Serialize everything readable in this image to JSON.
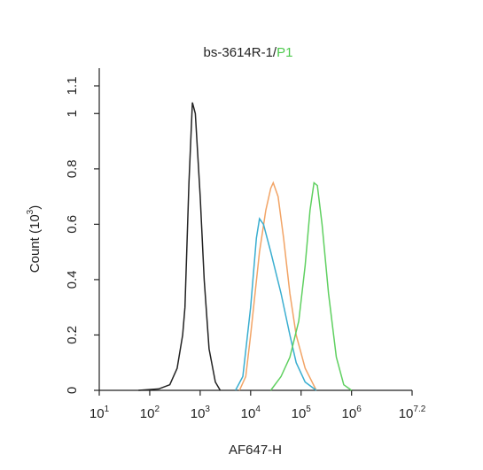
{
  "chart_data": {
    "type": "line",
    "title": "bs-3614R-1/",
    "title_suffix": "P1",
    "title_suffix_color": "#4cc94c",
    "xlabel": "AF647-H",
    "ylabel": "Count (10^3)",
    "xscale": "log",
    "xlim": [
      10,
      15848931.92
    ],
    "xticks": [
      {
        "value": 10,
        "label": "10^1"
      },
      {
        "value": 100,
        "label": "10^2"
      },
      {
        "value": 1000,
        "label": "10^3"
      },
      {
        "value": 10000,
        "label": "10^4"
      },
      {
        "value": 100000,
        "label": "10^5"
      },
      {
        "value": 1000000,
        "label": "10^6"
      },
      {
        "value": 15848931.92,
        "label": "10^7.2"
      }
    ],
    "ylim": [
      0,
      1.1
    ],
    "yticks": [
      0,
      0.2,
      0.4,
      0.6,
      0.8,
      1,
      1.1
    ],
    "series": [
      {
        "color": "#222222",
        "x": [
          60,
          150,
          250,
          350,
          450,
          500,
          600,
          700,
          800,
          1000,
          1200,
          1500,
          2000,
          2500
        ],
        "values": [
          0,
          0.005,
          0.02,
          0.08,
          0.2,
          0.3,
          0.75,
          1.04,
          1.0,
          0.7,
          0.4,
          0.15,
          0.03,
          0
        ]
      },
      {
        "color": "#f2a466",
        "x": [
          6000,
          8000,
          10000,
          15000,
          20000,
          25000,
          28000,
          35000,
          45000,
          60000,
          80000,
          120000,
          200000
        ],
        "values": [
          0,
          0.05,
          0.2,
          0.5,
          0.65,
          0.73,
          0.75,
          0.7,
          0.55,
          0.35,
          0.2,
          0.08,
          0
        ]
      },
      {
        "color": "#3aaed0",
        "x": [
          5000,
          7000,
          10000,
          13000,
          15000,
          18000,
          25000,
          40000,
          60000,
          80000,
          120000,
          200000
        ],
        "values": [
          0,
          0.05,
          0.3,
          0.55,
          0.62,
          0.6,
          0.5,
          0.35,
          0.2,
          0.1,
          0.03,
          0
        ]
      },
      {
        "color": "#5fd060",
        "x": [
          25000,
          40000,
          60000,
          90000,
          120000,
          150000,
          180000,
          210000,
          260000,
          350000,
          500000,
          700000,
          1000000
        ],
        "values": [
          0,
          0.05,
          0.12,
          0.25,
          0.45,
          0.65,
          0.75,
          0.74,
          0.6,
          0.35,
          0.12,
          0.02,
          0
        ]
      }
    ]
  }
}
